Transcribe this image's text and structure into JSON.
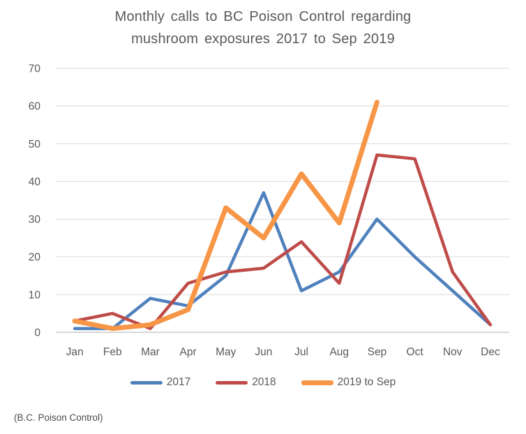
{
  "title_lines": {
    "line1": "Monthly calls to BC Poison Control regarding",
    "line2": "mushroom exposures 2017 to Sep 2019"
  },
  "credit": "(B.C. Poison Control)",
  "chart_data": {
    "type": "line",
    "title": "Monthly calls to BC Poison Control regarding mushroom exposures 2017 to Sep 2019",
    "categories": [
      "Jan",
      "Feb",
      "Mar",
      "Apr",
      "May",
      "Jun",
      "Jul",
      "Aug",
      "Sep",
      "Oct",
      "Nov",
      "Dec"
    ],
    "series": [
      {
        "name": "2017",
        "color": "#4F81BD",
        "line_width": 4.5,
        "values": [
          1,
          1,
          9,
          7,
          15,
          37,
          11,
          16,
          30,
          20,
          11,
          2
        ]
      },
      {
        "name": "2018",
        "color": "#BE4B48",
        "line_width": 4.5,
        "values": [
          3,
          5,
          1,
          13,
          16,
          17,
          24,
          13,
          47,
          46,
          16,
          2
        ]
      },
      {
        "name": "2019 to Sep",
        "color": "#F79646",
        "line_width": 7,
        "values": [
          3,
          1,
          2,
          6,
          33,
          25,
          42,
          29,
          61
        ]
      }
    ],
    "xlabel": "",
    "ylabel": "",
    "ylim": [
      0,
      70
    ],
    "y_ticks": [
      0,
      10,
      20,
      30,
      40,
      50,
      60,
      70
    ],
    "grid": true,
    "legend_position": "bottom",
    "colors": {
      "label": "#595959",
      "gridline": "#D9D9D9",
      "axis": "#BFBFBF",
      "background": "#FFFFFF"
    }
  }
}
